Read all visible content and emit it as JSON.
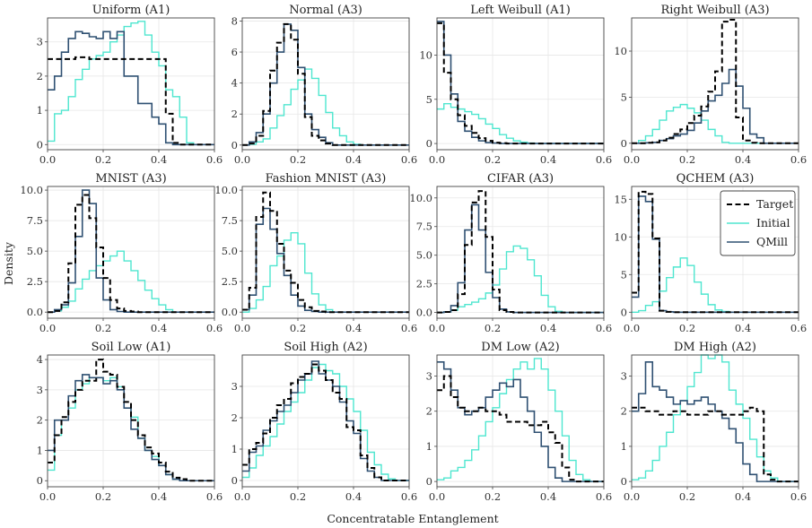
{
  "chart_data": {
    "type": "line",
    "layout": "3x4 grid of step histograms",
    "xlabel": "Concentratable Entanglement",
    "ylabel": "Density",
    "xlim": [
      0,
      0.6
    ],
    "xticks": [
      0.0,
      0.2,
      0.4,
      0.6
    ],
    "bin_width": 0.025,
    "grid": true,
    "legend": {
      "placement": "top-right",
      "panel": "QCHEM (A3)",
      "entries": [
        "Target",
        "Initial",
        "QMill"
      ]
    },
    "colors": {
      "Target": "#000000",
      "Initial": "#4ee6cf",
      "QMill": "#2f5072"
    },
    "panels": [
      {
        "title": "Uniform (A1)",
        "ylim": [
          -0.15,
          3.7
        ],
        "yticks": [
          0,
          1,
          2,
          3
        ],
        "ytick_labels": [
          "0",
          "1",
          "2",
          "3"
        ],
        "Target": [
          2.5,
          2.5,
          2.5,
          2.5,
          2.55,
          2.55,
          2.5,
          2.5,
          2.5,
          2.5,
          2.5,
          2.5,
          2.5,
          2.5,
          2.5,
          2.5,
          2.5,
          0.9,
          0.05,
          0,
          0,
          0,
          0,
          0
        ],
        "Initial": [
          0.1,
          0.9,
          1.0,
          1.4,
          1.9,
          2.2,
          2.5,
          2.6,
          2.7,
          3.0,
          3.2,
          3.45,
          3.55,
          3.6,
          3.2,
          2.7,
          2.3,
          1.6,
          1.4,
          0.8,
          0.05,
          0,
          0,
          0
        ],
        "QMill": [
          1.6,
          2.0,
          2.7,
          3.1,
          3.3,
          3.25,
          3.15,
          3.1,
          3.3,
          3.1,
          3.3,
          2.0,
          2.0,
          1.2,
          1.2,
          0.8,
          0.6,
          0.05,
          0,
          0,
          0,
          0,
          0,
          0
        ]
      },
      {
        "title": "Normal (A3)",
        "ylim": [
          -0.3,
          8.2
        ],
        "yticks": [
          0,
          2,
          4,
          6,
          8
        ],
        "ytick_labels": [
          "0",
          "2",
          "4",
          "6",
          "8"
        ],
        "Target": [
          0,
          0.1,
          0.6,
          2.2,
          4.8,
          6.6,
          7.8,
          6.8,
          4.6,
          1.8,
          0.6,
          0.3,
          0.1,
          0,
          0,
          0,
          0,
          0,
          0,
          0,
          0,
          0,
          0,
          0
        ],
        "Initial": [
          0,
          0.05,
          0.2,
          0.4,
          1.1,
          1.9,
          2.6,
          3.6,
          4.2,
          4.9,
          4.3,
          3.2,
          2.1,
          1.1,
          0.6,
          0.2,
          0.05,
          0,
          0,
          0,
          0,
          0,
          0,
          0
        ],
        "QMill": [
          0,
          0.2,
          0.8,
          2.0,
          4.0,
          6.0,
          7.8,
          7.4,
          5.0,
          2.0,
          1.0,
          0.5,
          0.15,
          0,
          0,
          0,
          0,
          0,
          0,
          0,
          0,
          0,
          0,
          0
        ]
      },
      {
        "title": "Left Weibull (A1)",
        "ylim": [
          -0.7,
          14.2
        ],
        "yticks": [
          0,
          5,
          10
        ],
        "ytick_labels": [
          "0",
          "5",
          "10"
        ],
        "Target": [
          13.6,
          8.0,
          5.0,
          3.2,
          2.0,
          1.2,
          0.6,
          0.3,
          0.1,
          0.05,
          0,
          0,
          0,
          0,
          0,
          0,
          0,
          0,
          0,
          0,
          0,
          0,
          0,
          0
        ],
        "Initial": [
          3.9,
          4.5,
          4.1,
          3.9,
          3.6,
          3.3,
          2.8,
          2.2,
          1.7,
          1.0,
          0.6,
          0.3,
          0.15,
          0.05,
          0,
          0,
          0,
          0,
          0,
          0,
          0,
          0,
          0,
          0
        ],
        "QMill": [
          13.8,
          10.0,
          5.6,
          2.5,
          1.4,
          0.7,
          0.3,
          0.1,
          0.05,
          0,
          0,
          0,
          0,
          0,
          0,
          0,
          0,
          0,
          0,
          0,
          0,
          0,
          0,
          0
        ]
      },
      {
        "title": "Right Weibull (A3)",
        "ylim": [
          -0.7,
          13.6
        ],
        "yticks": [
          0,
          5,
          10
        ],
        "ytick_labels": [
          "0",
          "5",
          "10"
        ],
        "Target": [
          0,
          0,
          0.05,
          0.1,
          0.3,
          0.6,
          1.0,
          1.5,
          2.2,
          3.0,
          4.0,
          5.6,
          7.8,
          13.2,
          13.4,
          2.8,
          0.3,
          0.05,
          0,
          0,
          0,
          0,
          0,
          0
        ],
        "Initial": [
          0,
          0.3,
          0.8,
          1.5,
          2.5,
          3.5,
          3.9,
          4.2,
          3.8,
          3.3,
          2.5,
          1.5,
          0.8,
          0.1,
          0,
          0,
          0,
          0,
          0,
          0,
          0,
          0,
          0,
          0
        ],
        "QMill": [
          0,
          0,
          0.05,
          0.1,
          0.3,
          0.5,
          0.8,
          1.0,
          1.4,
          2.2,
          3.5,
          4.6,
          5.2,
          6.5,
          8.0,
          6.2,
          3.8,
          1.0,
          0.6,
          0,
          0,
          0,
          0,
          0
        ]
      },
      {
        "title": "MNIST (A3)",
        "ylim": [
          -0.5,
          10.3
        ],
        "yticks": [
          0,
          2.5,
          5,
          7.5,
          10
        ],
        "ytick_labels": [
          "0.0",
          "2.5",
          "5.0",
          "7.5",
          "10.0"
        ],
        "Target": [
          0,
          0.1,
          0.8,
          4.0,
          8.8,
          9.6,
          7.7,
          5.3,
          2.8,
          1.0,
          0.3,
          0.1,
          0.05,
          0,
          0,
          0,
          0,
          0,
          0,
          0,
          0,
          0,
          0,
          0
        ],
        "Initial": [
          0,
          0.1,
          0.4,
          0.9,
          1.9,
          2.7,
          3.4,
          3.8,
          4.2,
          4.6,
          5.0,
          4.2,
          3.4,
          2.6,
          1.8,
          1.1,
          0.6,
          0.2,
          0,
          0,
          0,
          0,
          0,
          0
        ],
        "QMill": [
          0,
          0.2,
          0.6,
          2.4,
          6.2,
          10.0,
          8.9,
          2.8,
          1.0,
          0.2,
          0.05,
          0,
          0,
          0,
          0,
          0,
          0,
          0,
          0,
          0,
          0,
          0,
          0,
          0
        ]
      },
      {
        "title": "Fashion MNIST (A3)",
        "ylim": [
          -0.5,
          10.3
        ],
        "yticks": [
          0,
          2.5,
          5,
          7.5,
          10
        ],
        "ytick_labels": [
          "0.0",
          "2.5",
          "5.0",
          "7.5",
          "10.0"
        ],
        "Target": [
          0.2,
          2.0,
          7.8,
          9.8,
          8.3,
          5.6,
          3.4,
          2.4,
          1.0,
          0.4,
          0.1,
          0.05,
          0,
          0,
          0,
          0,
          0,
          0,
          0,
          0,
          0,
          0,
          0,
          0
        ],
        "Initial": [
          0,
          0.3,
          1.0,
          2.1,
          3.8,
          4.6,
          5.9,
          6.5,
          5.6,
          3.2,
          1.5,
          0.6,
          0.2,
          0,
          0,
          0,
          0,
          0,
          0,
          0,
          0,
          0,
          0,
          0
        ],
        "QMill": [
          0.2,
          1.4,
          7.2,
          8.5,
          6.8,
          4.8,
          3.0,
          1.4,
          0.5,
          0.15,
          0.05,
          0,
          0,
          0,
          0,
          0,
          0,
          0,
          0,
          0,
          0,
          0,
          0,
          0
        ]
      },
      {
        "title": "CIFAR (A3)",
        "ylim": [
          -0.5,
          11.0
        ],
        "yticks": [
          0,
          2.5,
          5,
          7.5,
          10
        ],
        "ytick_labels": [
          "0.0",
          "2.5",
          "5.0",
          "7.5",
          "10.0"
        ],
        "Target": [
          0,
          0.05,
          0.2,
          1.6,
          5.9,
          9.6,
          10.6,
          6.6,
          2.0,
          0.2,
          0.05,
          0,
          0,
          0,
          0,
          0,
          0,
          0,
          0,
          0,
          0,
          0,
          0,
          0
        ],
        "Initial": [
          0,
          0.05,
          0.2,
          0.5,
          0.7,
          0.9,
          1.2,
          1.7,
          2.4,
          3.8,
          5.3,
          5.8,
          5.6,
          4.6,
          3.2,
          1.5,
          0.5,
          0.1,
          0,
          0,
          0,
          0,
          0,
          0
        ],
        "QMill": [
          0,
          0.05,
          0.6,
          2.6,
          7.2,
          9.4,
          7.2,
          3.5,
          1.3,
          0.3,
          0.05,
          0,
          0,
          0,
          0,
          0,
          0,
          0,
          0,
          0,
          0,
          0,
          0,
          0
        ]
      },
      {
        "title": "QCHEM (A3)",
        "ylim": [
          -0.8,
          16.7
        ],
        "yticks": [
          0,
          5,
          10,
          15
        ],
        "ytick_labels": [
          "0",
          "5",
          "10",
          "15"
        ],
        "Target": [
          2.6,
          16.0,
          15.7,
          9.8,
          0.2,
          0.05,
          0,
          0,
          0,
          0,
          0,
          0,
          0,
          0,
          0,
          0,
          0,
          0,
          0,
          0,
          0,
          0,
          0,
          0
        ],
        "Initial": [
          0,
          0.2,
          0.9,
          1.4,
          2.8,
          4.6,
          6.0,
          7.2,
          6.2,
          4.0,
          2.4,
          1.0,
          0.3,
          0.1,
          0,
          0,
          0,
          0,
          0,
          0,
          0,
          0,
          0,
          0
        ],
        "QMill": [
          2.0,
          15.4,
          14.7,
          9.7,
          0.2,
          0.05,
          0,
          0,
          0,
          0,
          0,
          0,
          0,
          0,
          0,
          0,
          0,
          0,
          0,
          0,
          0,
          0,
          0,
          0
        ]
      },
      {
        "title": "Soil Low (A1)",
        "ylim": [
          -0.2,
          4.15
        ],
        "yticks": [
          0,
          1,
          2,
          3,
          4
        ],
        "ytick_labels": [
          "0",
          "1",
          "2",
          "3",
          "4"
        ],
        "Target": [
          0.6,
          1.5,
          2.1,
          2.6,
          3.0,
          3.3,
          3.3,
          4.0,
          3.6,
          3.5,
          3.1,
          2.6,
          2.0,
          1.5,
          1.1,
          0.9,
          0.6,
          0.3,
          0.1,
          0.05,
          0,
          0,
          0,
          0
        ],
        "Initial": [
          0.35,
          1.5,
          2.0,
          2.4,
          3.0,
          3.2,
          3.4,
          3.4,
          3.3,
          3.4,
          3.1,
          2.4,
          2.1,
          1.4,
          1.0,
          0.8,
          0.5,
          0.2,
          0.05,
          0,
          0,
          0,
          0,
          0
        ],
        "QMill": [
          1.0,
          2.0,
          2.0,
          2.8,
          3.3,
          3.5,
          3.4,
          3.4,
          3.2,
          3.3,
          3.0,
          2.4,
          1.7,
          1.4,
          1.0,
          0.7,
          0.5,
          0.2,
          0.05,
          0,
          0,
          0,
          0,
          0
        ]
      },
      {
        "title": "Soil High (A2)",
        "ylim": [
          -0.2,
          4.0
        ],
        "yticks": [
          0,
          1,
          2,
          3
        ],
        "ytick_labels": [
          "0",
          "1",
          "2",
          "3"
        ],
        "Target": [
          0.5,
          1.0,
          1.2,
          1.5,
          2.0,
          2.4,
          2.6,
          3.1,
          3.3,
          3.4,
          3.7,
          3.5,
          3.2,
          2.8,
          2.6,
          1.7,
          1.6,
          0.8,
          0.4,
          0.1,
          0,
          0,
          0,
          0
        ],
        "Initial": [
          0.1,
          0.4,
          0.8,
          1.1,
          1.4,
          1.8,
          2.2,
          2.5,
          2.8,
          3.2,
          3.6,
          3.7,
          3.5,
          3.4,
          3.0,
          2.6,
          2.2,
          1.6,
          0.9,
          0.5,
          0.2,
          0.05,
          0,
          0
        ],
        "QMill": [
          0.3,
          0.9,
          1.1,
          1.6,
          1.9,
          2.2,
          2.4,
          2.8,
          3.2,
          3.4,
          3.8,
          3.4,
          3.2,
          3.0,
          2.5,
          1.9,
          1.5,
          0.7,
          0.3,
          0.1,
          0,
          0,
          0,
          0
        ]
      },
      {
        "title": "DM Low (A2)",
        "ylim": [
          -0.15,
          3.6
        ],
        "yticks": [
          0,
          1,
          2,
          3
        ],
        "ytick_labels": [
          "0",
          "1",
          "2",
          "3"
        ],
        "Target": [
          2.6,
          3.0,
          2.4,
          2.1,
          2.0,
          2.0,
          2.1,
          2.0,
          2.0,
          1.9,
          1.7,
          1.7,
          1.7,
          1.6,
          1.6,
          1.7,
          1.4,
          1.1,
          0.4,
          0.05,
          0,
          0,
          0,
          0
        ],
        "Initial": [
          0.05,
          0.1,
          0.3,
          0.4,
          0.6,
          0.9,
          1.3,
          1.7,
          2.1,
          2.5,
          2.9,
          3.2,
          3.4,
          3.2,
          3.5,
          3.2,
          2.6,
          2.0,
          1.3,
          0.6,
          0.2,
          0.05,
          0,
          0
        ],
        "QMill": [
          3.4,
          3.2,
          2.6,
          2.1,
          1.9,
          2.0,
          2.1,
          2.4,
          2.6,
          2.8,
          2.7,
          2.9,
          2.4,
          2.0,
          1.4,
          1.0,
          0.4,
          0.1,
          0,
          0,
          0,
          0,
          0,
          0
        ]
      },
      {
        "title": "DM High (A2)",
        "ylim": [
          -0.15,
          3.6
        ],
        "yticks": [
          0,
          1,
          2,
          3
        ],
        "ytick_labels": [
          "0",
          "1",
          "2",
          "3"
        ],
        "Target": [
          2.1,
          2.1,
          2.0,
          2.0,
          1.9,
          1.9,
          2.0,
          2.0,
          1.9,
          1.9,
          1.9,
          2.0,
          2.0,
          1.9,
          1.9,
          1.9,
          2.0,
          2.1,
          2.0,
          0.2,
          0.05,
          0,
          0,
          0
        ],
        "Initial": [
          0.05,
          0.1,
          0.3,
          0.6,
          1.0,
          1.4,
          1.9,
          2.3,
          2.7,
          3.1,
          3.6,
          3.5,
          3.6,
          3.4,
          2.6,
          2.2,
          1.8,
          1.2,
          0.7,
          0.3,
          0.1,
          0,
          0,
          0
        ],
        "QMill": [
          2.0,
          2.5,
          3.4,
          2.7,
          2.6,
          2.4,
          2.2,
          2.3,
          2.2,
          2.3,
          2.4,
          2.2,
          2.0,
          1.8,
          1.5,
          1.1,
          0.5,
          0.2,
          0,
          0,
          0,
          0,
          0,
          0
        ]
      }
    ]
  }
}
